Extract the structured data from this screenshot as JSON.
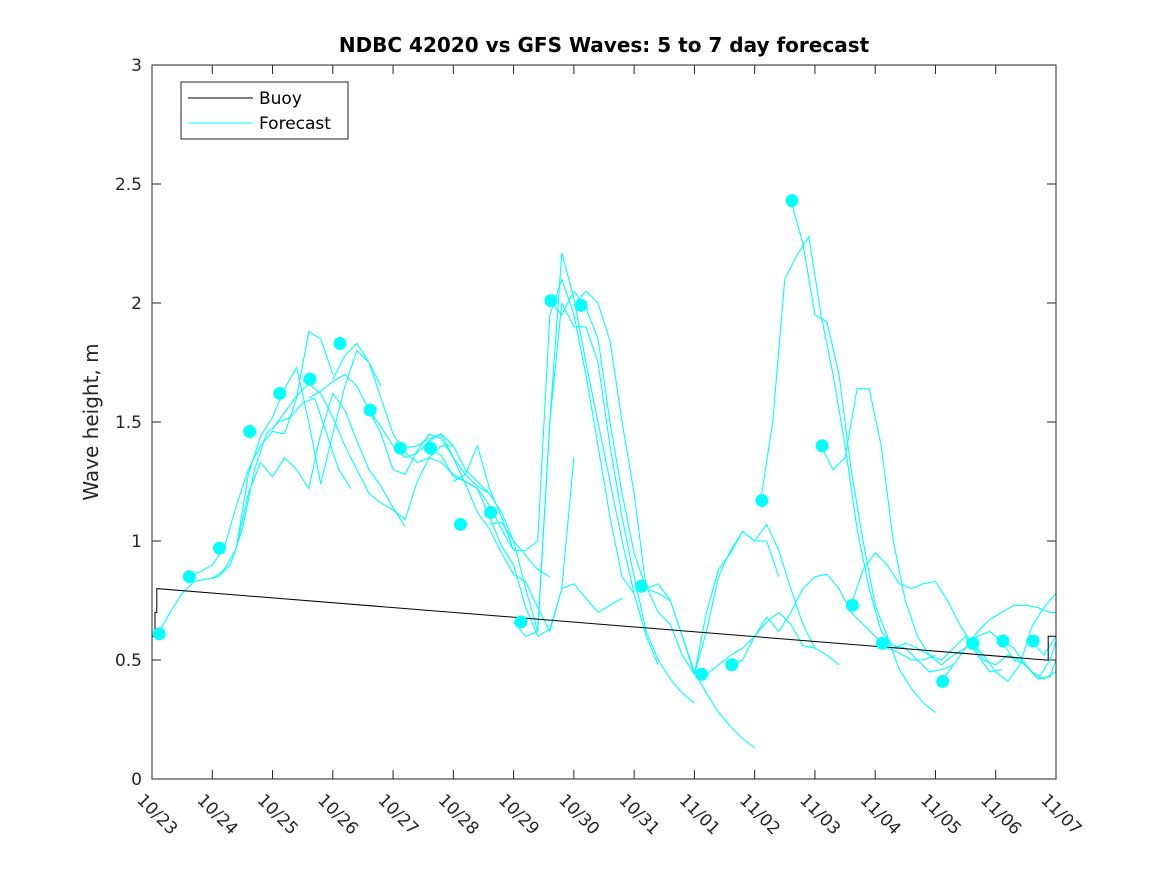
{
  "chart_data": {
    "type": "line",
    "title": "NDBC 42020 vs GFS Waves: 5 to 7 day forecast",
    "xlabel": "",
    "ylabel": "Wave height, m",
    "xlim": [
      0,
      15
    ],
    "ylim": [
      0,
      3
    ],
    "x_tick_values": [
      0,
      1,
      2,
      3,
      4,
      5,
      6,
      7,
      8,
      9,
      10,
      11,
      12,
      13,
      14,
      15
    ],
    "x_tick_labels": [
      "10/23",
      "10/24",
      "10/25",
      "10/26",
      "10/27",
      "10/28",
      "10/29",
      "10/30",
      "10/31",
      "11/01",
      "11/02",
      "11/03",
      "11/04",
      "11/05",
      "11/06",
      "11/07"
    ],
    "y_tick_values": [
      0,
      0.5,
      1,
      1.5,
      2,
      2.5,
      3
    ],
    "y_tick_labels": [
      "0",
      "0.5",
      "1",
      "1.5",
      "2",
      "2.5",
      "3"
    ],
    "legend": {
      "location": "top-left",
      "entries": [
        {
          "label": "Buoy",
          "color": "#000000"
        },
        {
          "label": "Forecast",
          "color": "#00ffff"
        }
      ]
    },
    "colors": {
      "buoy": "#000000",
      "forecast": "#00ffff",
      "axes": "#262626"
    },
    "buoy": {
      "name": "Buoy",
      "x": [
        0,
        0.05,
        0.05,
        0.08,
        0.08,
        14.83,
        14.83,
        14.87,
        14.87,
        15
      ],
      "y": [
        0.6,
        0.6,
        0.7,
        0.7,
        0.8,
        0.5,
        0.5,
        0.5,
        0.6,
        0.6
      ]
    },
    "forecast_series": [
      {
        "name": "Forecast",
        "x": [
          0.1,
          0.3,
          0.5,
          0.7,
          0.9,
          1.1,
          1.3,
          1.5,
          1.7,
          1.9,
          2.1,
          2.3,
          2.5,
          2.7,
          2.9,
          3.1,
          3.3
        ],
        "y": [
          0.61,
          0.7,
          0.78,
          0.83,
          0.84,
          0.85,
          0.9,
          1.05,
          1.3,
          1.45,
          1.5,
          1.52,
          1.58,
          1.6,
          1.45,
          1.3,
          1.22
        ]
      },
      {
        "name": "Forecast",
        "x": [
          0.6,
          0.8,
          1.0,
          1.2,
          1.4,
          1.6,
          1.8,
          2.0,
          2.2,
          2.4,
          2.6,
          2.8,
          3.0
        ],
        "y": [
          0.85,
          0.87,
          0.9,
          0.97,
          1.15,
          1.3,
          1.4,
          1.46,
          1.45,
          1.6,
          1.88,
          1.85,
          1.7
        ]
      },
      {
        "name": "Forecast",
        "x": [
          1.0,
          1.2,
          1.4,
          1.6,
          1.8,
          2.0,
          2.2,
          2.4,
          2.6,
          2.8,
          3.0,
          3.2,
          3.4,
          3.6,
          3.8
        ],
        "y": [
          0.84,
          0.88,
          0.97,
          1.28,
          1.44,
          1.52,
          1.64,
          1.73,
          1.5,
          1.24,
          1.45,
          1.65,
          1.8,
          1.75,
          1.65
        ]
      },
      {
        "name": "Forecast",
        "x": [
          1.4,
          1.6,
          1.8,
          2.0,
          2.2,
          2.4,
          2.6,
          2.8,
          3.0,
          3.2,
          3.4,
          3.6,
          3.8,
          4.0,
          4.2
        ],
        "y": [
          0.97,
          1.2,
          1.33,
          1.27,
          1.35,
          1.3,
          1.22,
          1.45,
          1.62,
          1.55,
          1.42,
          1.3,
          1.23,
          1.14,
          1.06
        ]
      },
      {
        "name": "Forecast",
        "x": [
          2.0,
          2.2,
          2.4,
          2.6,
          2.8,
          3.0,
          3.2,
          3.4,
          3.6,
          3.8,
          4.0,
          4.2,
          4.4,
          4.6,
          4.8,
          5.0
        ],
        "y": [
          1.47,
          1.54,
          1.61,
          1.66,
          1.62,
          1.52,
          1.4,
          1.3,
          1.2,
          1.16,
          1.13,
          1.09,
          1.25,
          1.35,
          1.4,
          1.4
        ]
      },
      {
        "name": "Forecast",
        "x": [
          2.6,
          2.8,
          3.0,
          3.2,
          3.4,
          3.6,
          3.8,
          4.0,
          4.2,
          4.4,
          4.6,
          4.8,
          5.0,
          5.2,
          5.4,
          5.6
        ],
        "y": [
          1.6,
          1.63,
          1.67,
          1.7,
          1.65,
          1.55,
          1.45,
          1.3,
          1.28,
          1.38,
          1.45,
          1.43,
          1.35,
          1.28,
          1.23,
          1.2
        ]
      },
      {
        "name": "Forecast",
        "x": [
          3.0,
          3.2,
          3.4,
          3.6,
          3.8,
          4.0,
          4.2,
          4.4,
          4.6,
          4.8,
          5.0,
          5.2,
          5.4,
          5.6,
          5.8,
          6.0
        ],
        "y": [
          1.68,
          1.78,
          1.83,
          1.75,
          1.6,
          1.45,
          1.37,
          1.33,
          1.35,
          1.33,
          1.28,
          1.25,
          1.22,
          1.15,
          1.05,
          0.96
        ]
      },
      {
        "name": "Forecast",
        "x": [
          3.6,
          3.8,
          4.0,
          4.2,
          4.4,
          4.6,
          4.8,
          5.0,
          5.2,
          5.4,
          5.6,
          5.8,
          6.0,
          6.2,
          6.4,
          6.6
        ],
        "y": [
          1.55,
          1.48,
          1.4,
          1.35,
          1.37,
          1.42,
          1.45,
          1.4,
          1.3,
          1.25,
          1.2,
          1.12,
          1.0,
          0.94,
          0.88,
          0.85
        ]
      },
      {
        "name": "Forecast",
        "x": [
          4.2,
          4.4,
          4.6,
          4.8,
          5.0,
          5.2,
          5.4,
          5.6,
          5.8,
          6.0,
          6.2,
          6.4,
          6.6,
          6.8,
          7.0
        ],
        "y": [
          1.39,
          1.4,
          1.43,
          1.45,
          1.35,
          1.24,
          1.12,
          1.05,
          0.95,
          0.86,
          0.83,
          0.72,
          0.62,
          0.8,
          1.35
        ]
      },
      {
        "name": "Forecast",
        "x": [
          4.6,
          4.8,
          5.0,
          5.2,
          5.4,
          5.6,
          5.8,
          6.0,
          6.2,
          6.4,
          6.6,
          6.8,
          7.0,
          7.2,
          7.4,
          7.6,
          7.8
        ],
        "y": [
          1.39,
          1.36,
          1.27,
          1.25,
          1.22,
          1.1,
          0.98,
          0.9,
          0.72,
          0.6,
          0.63,
          0.8,
          0.82,
          0.76,
          0.7,
          0.73,
          0.76
        ]
      },
      {
        "name": "Forecast",
        "x": [
          5.0,
          5.2,
          5.4,
          5.6,
          5.8,
          6.0,
          6.2,
          6.4,
          6.6,
          6.8,
          7.0,
          7.2,
          7.4,
          7.6,
          7.8,
          8.0
        ],
        "y": [
          1.25,
          1.28,
          1.4,
          1.22,
          1.1,
          0.96,
          0.96,
          1.0,
          1.95,
          2.1,
          1.95,
          1.7,
          1.4,
          1.1,
          0.85,
          0.78
        ]
      },
      {
        "name": "Forecast",
        "x": [
          5.6,
          5.8,
          6.0,
          6.2,
          6.4,
          6.6,
          6.8,
          7.0,
          7.2,
          7.4,
          7.6,
          7.8,
          8.0,
          8.2,
          8.4
        ],
        "y": [
          1.07,
          1.08,
          1.0,
          0.8,
          0.62,
          1.5,
          2.21,
          2.02,
          1.75,
          1.5,
          1.25,
          1.0,
          0.78,
          0.6,
          0.48
        ]
      },
      {
        "name": "Forecast",
        "x": [
          6.0,
          6.2,
          6.4,
          6.6,
          6.8,
          7.0,
          7.2,
          7.4,
          7.6,
          7.8,
          8.0,
          8.2,
          8.4,
          8.6,
          8.8,
          9.0
        ],
        "y": [
          0.66,
          0.6,
          0.62,
          1.5,
          2.0,
          1.9,
          1.9,
          1.75,
          1.4,
          1.1,
          0.85,
          0.62,
          0.5,
          0.42,
          0.36,
          0.32
        ]
      },
      {
        "name": "Forecast",
        "x": [
          6.6,
          6.8,
          7.0,
          7.2,
          7.4,
          7.6,
          7.8,
          8.0,
          8.2,
          8.4,
          8.6,
          8.8,
          9.0,
          9.2,
          9.4,
          9.6,
          9.8,
          10.0
        ],
        "y": [
          2.01,
          1.95,
          2.05,
          1.98,
          1.85,
          1.5,
          1.2,
          0.95,
          0.8,
          0.78,
          0.75,
          0.6,
          0.45,
          0.36,
          0.28,
          0.22,
          0.17,
          0.13
        ]
      },
      {
        "name": "Forecast",
        "x": [
          7.0,
          7.2,
          7.4,
          7.6,
          7.8,
          8.0,
          8.2,
          8.4,
          8.6,
          8.8,
          9.0,
          9.2,
          9.4,
          9.6,
          9.8,
          10.0,
          10.2,
          10.4
        ],
        "y": [
          1.99,
          2.05,
          2.0,
          1.84,
          1.5,
          1.2,
          0.8,
          0.82,
          0.75,
          0.6,
          0.44,
          0.7,
          0.88,
          0.95,
          1.04,
          1.0,
          1.0,
          0.85
        ]
      },
      {
        "name": "Forecast",
        "x": [
          8.2,
          8.4,
          8.6,
          8.8,
          9.0,
          9.2,
          9.4,
          9.6,
          9.8,
          10.0,
          10.2,
          10.4,
          10.6,
          10.8,
          11.0,
          11.2,
          11.4
        ],
        "y": [
          0.81,
          0.7,
          0.65,
          0.52,
          0.44,
          0.62,
          0.85,
          0.96,
          1.04,
          1.0,
          1.07,
          0.96,
          0.8,
          0.65,
          0.55,
          0.52,
          0.48
        ]
      },
      {
        "name": "Forecast",
        "x": [
          9.2,
          9.4,
          9.6,
          9.8,
          10.0,
          10.2,
          10.4,
          10.6,
          10.8,
          11.0
        ],
        "y": [
          0.44,
          0.48,
          0.52,
          0.55,
          0.6,
          0.66,
          0.7,
          0.65,
          0.56,
          0.55
        ]
      },
      {
        "name": "Forecast",
        "x": [
          9.6,
          9.8,
          10.0,
          10.2,
          10.4,
          10.6,
          10.8,
          11.0,
          11.2,
          11.4,
          11.6,
          11.8,
          12.0,
          12.2,
          12.4,
          12.6,
          12.8,
          13.0
        ],
        "y": [
          0.48,
          0.5,
          0.6,
          0.68,
          0.62,
          0.7,
          0.8,
          0.85,
          0.86,
          0.8,
          0.7,
          0.65,
          0.6,
          0.55,
          0.53,
          0.5,
          0.5,
          0.52
        ]
      },
      {
        "name": "Forecast",
        "x": [
          10.1,
          10.3,
          10.5,
          10.7,
          10.9,
          11.1,
          11.3,
          11.5,
          11.7,
          11.9,
          12.1,
          12.3,
          12.5,
          12.7,
          12.9,
          13.1,
          13.3
        ],
        "y": [
          1.17,
          1.5,
          2.1,
          2.2,
          2.28,
          1.95,
          1.7,
          1.4,
          1.05,
          0.8,
          0.62,
          0.56,
          0.55,
          0.5,
          0.45,
          0.46,
          0.48
        ]
      },
      {
        "name": "Forecast",
        "x": [
          10.6,
          10.8,
          11.0,
          11.2,
          11.4,
          11.6,
          11.8,
          12.0,
          12.2,
          12.4,
          12.6,
          12.8,
          13.0
        ],
        "y": [
          2.43,
          2.25,
          1.95,
          1.92,
          1.7,
          1.3,
          1.0,
          0.73,
          0.6,
          0.46,
          0.38,
          0.32,
          0.28
        ]
      },
      {
        "name": "Forecast",
        "x": [
          11.1,
          11.3,
          11.5,
          11.7,
          11.9,
          12.1,
          12.3,
          12.5,
          12.7,
          12.9,
          13.1,
          13.3,
          13.5,
          13.7,
          13.9,
          14.1
        ],
        "y": [
          1.4,
          1.3,
          1.35,
          1.64,
          1.64,
          1.4,
          1.0,
          0.75,
          0.6,
          0.52,
          0.5,
          0.55,
          0.6,
          0.52,
          0.45,
          0.46
        ]
      },
      {
        "name": "Forecast",
        "x": [
          11.6,
          11.8,
          12.0,
          12.2,
          12.4,
          12.6,
          12.8,
          13.0,
          13.2,
          13.4,
          13.6,
          13.8,
          14.0,
          14.2,
          14.4,
          14.6,
          14.8,
          15.0
        ],
        "y": [
          0.73,
          0.88,
          0.95,
          0.9,
          0.82,
          0.8,
          0.82,
          0.83,
          0.75,
          0.65,
          0.57,
          0.5,
          0.48,
          0.52,
          0.5,
          0.45,
          0.42,
          0.45
        ]
      },
      {
        "name": "Forecast",
        "x": [
          12.1,
          12.3,
          12.5,
          12.7,
          12.9,
          13.1,
          13.3,
          13.5,
          13.7,
          13.9,
          14.1,
          14.3,
          14.5,
          14.7,
          14.9,
          15.0
        ],
        "y": [
          0.57,
          0.55,
          0.57,
          0.55,
          0.52,
          0.48,
          0.52,
          0.55,
          0.6,
          0.62,
          0.58,
          0.55,
          0.48,
          0.42,
          0.43,
          0.5
        ]
      },
      {
        "name": "Forecast",
        "x": [
          13.1,
          13.3,
          13.5,
          13.7,
          13.9,
          14.1,
          14.3,
          14.5,
          14.7,
          14.9,
          15.0
        ],
        "y": [
          0.41,
          0.48,
          0.55,
          0.62,
          0.67,
          0.7,
          0.73,
          0.73,
          0.72,
          0.7,
          0.7
        ]
      },
      {
        "name": "Forecast",
        "x": [
          13.6,
          13.8,
          14.0,
          14.2,
          14.4,
          14.6,
          14.8,
          15.0
        ],
        "y": [
          0.57,
          0.52,
          0.45,
          0.41,
          0.48,
          0.64,
          0.72,
          0.78
        ]
      },
      {
        "name": "Forecast",
        "x": [
          14.1,
          14.3,
          14.5,
          14.7,
          14.9,
          15.0
        ],
        "y": [
          0.58,
          0.5,
          0.48,
          0.42,
          0.5,
          0.58
        ]
      },
      {
        "name": "Forecast",
        "x": [
          14.6,
          14.8,
          15.0
        ],
        "y": [
          0.58,
          0.52,
          0.6
        ]
      }
    ],
    "forecast_markers": {
      "x": [
        0.12,
        0.62,
        1.12,
        1.62,
        2.12,
        2.62,
        3.12,
        3.62,
        4.12,
        4.62,
        5.12,
        5.62,
        6.12,
        6.62,
        7.12,
        8.12,
        9.12,
        9.62,
        10.12,
        10.62,
        11.12,
        11.62,
        12.12,
        13.12,
        13.62,
        14.12,
        14.62
      ],
      "y": [
        0.61,
        0.85,
        0.97,
        1.46,
        1.62,
        1.68,
        1.83,
        1.55,
        1.39,
        1.39,
        1.07,
        1.12,
        0.66,
        2.01,
        1.99,
        0.81,
        0.44,
        0.48,
        1.17,
        2.43,
        1.4,
        0.73,
        0.57,
        0.41,
        0.57,
        0.58,
        0.58
      ]
    }
  }
}
